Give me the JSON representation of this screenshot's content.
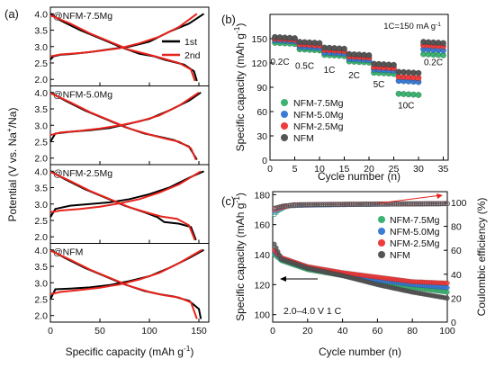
{
  "chart_data": [
    {
      "id": "a",
      "panel_label": "(a)",
      "type": "line",
      "xlabel": "Specific capacity (mAh g",
      "xlabel_sup": "-1",
      "xlabel_end": ")",
      "ylabel": "Potential (V vs. Na",
      "ylabel_sup": "+",
      "ylabel_end": "/Na)",
      "xlim": [
        0,
        160
      ],
      "x_ticks": [
        0,
        50,
        100,
        150
      ],
      "ylim": [
        1.8,
        4.2
      ],
      "y_ticks": [
        2.0,
        2.5,
        3.0,
        3.5,
        4.0
      ],
      "legend": [
        {
          "name": "1st",
          "color": "#000000"
        },
        {
          "name": "2nd",
          "color": "#e8231c"
        }
      ],
      "subplots": [
        {
          "label": "@NFM-7.5Mg",
          "charge": [
            [
              0,
              2.6
            ],
            [
              3,
              2.7
            ],
            [
              10,
              2.75
            ],
            [
              20,
              2.77
            ],
            [
              40,
              2.83
            ],
            [
              60,
              2.92
            ],
            [
              80,
              3.0
            ],
            [
              100,
              3.15
            ],
            [
              120,
              3.45
            ],
            [
              140,
              3.7
            ],
            [
              155,
              4.0
            ]
          ],
          "discharge": [
            [
              0,
              4.0
            ],
            [
              10,
              3.8
            ],
            [
              30,
              3.5
            ],
            [
              50,
              3.25
            ],
            [
              70,
              3.0
            ],
            [
              90,
              2.78
            ],
            [
              105,
              2.7
            ],
            [
              115,
              2.6
            ],
            [
              135,
              2.45
            ],
            [
              145,
              2.25
            ],
            [
              148,
              1.95
            ]
          ],
          "charge2": [
            [
              0,
              2.7
            ],
            [
              10,
              2.76
            ],
            [
              30,
              2.8
            ],
            [
              50,
              2.87
            ],
            [
              70,
              2.95
            ],
            [
              90,
              3.1
            ],
            [
              110,
              3.3
            ],
            [
              130,
              3.6
            ],
            [
              148,
              4.0
            ]
          ],
          "discharge2": [
            [
              0,
              3.95
            ],
            [
              20,
              3.7
            ],
            [
              40,
              3.4
            ],
            [
              60,
              3.15
            ],
            [
              80,
              2.9
            ],
            [
              100,
              2.75
            ],
            [
              112,
              2.65
            ],
            [
              130,
              2.5
            ],
            [
              142,
              2.3
            ],
            [
              146,
              1.95
            ]
          ]
        },
        {
          "label": "@NFM-5.0Mg",
          "charge": [
            [
              0,
              2.5
            ],
            [
              5,
              2.75
            ],
            [
              20,
              2.8
            ],
            [
              40,
              2.85
            ],
            [
              60,
              2.92
            ],
            [
              80,
              3.05
            ],
            [
              100,
              3.2
            ],
            [
              120,
              3.45
            ],
            [
              140,
              3.75
            ],
            [
              152,
              4.0
            ]
          ],
          "discharge": [
            [
              0,
              4.0
            ],
            [
              15,
              3.75
            ],
            [
              35,
              3.45
            ],
            [
              55,
              3.2
            ],
            [
              75,
              2.95
            ],
            [
              95,
              2.75
            ],
            [
              110,
              2.65
            ],
            [
              125,
              2.55
            ],
            [
              140,
              2.35
            ],
            [
              148,
              1.95
            ]
          ],
          "charge2": [
            [
              0,
              2.7
            ],
            [
              10,
              2.78
            ],
            [
              30,
              2.83
            ],
            [
              50,
              2.9
            ],
            [
              70,
              3.0
            ],
            [
              90,
              3.12
            ],
            [
              110,
              3.3
            ],
            [
              130,
              3.6
            ],
            [
              150,
              4.0
            ]
          ],
          "discharge2": [
            [
              0,
              3.98
            ],
            [
              20,
              3.7
            ],
            [
              40,
              3.4
            ],
            [
              60,
              3.15
            ],
            [
              80,
              2.9
            ],
            [
              100,
              2.72
            ],
            [
              115,
              2.6
            ],
            [
              130,
              2.5
            ],
            [
              142,
              2.3
            ],
            [
              147,
              1.95
            ]
          ]
        },
        {
          "label": "@NFM-2.5Mg",
          "charge": [
            [
              0,
              2.6
            ],
            [
              5,
              2.85
            ],
            [
              20,
              2.95
            ],
            [
              40,
              3.0
            ],
            [
              60,
              3.05
            ],
            [
              80,
              3.15
            ],
            [
              100,
              3.3
            ],
            [
              120,
              3.5
            ],
            [
              140,
              3.8
            ],
            [
              155,
              4.0
            ]
          ],
          "discharge": [
            [
              0,
              4.0
            ],
            [
              15,
              3.75
            ],
            [
              35,
              3.45
            ],
            [
              55,
              3.2
            ],
            [
              75,
              2.95
            ],
            [
              95,
              2.75
            ],
            [
              108,
              2.6
            ],
            [
              115,
              2.45
            ],
            [
              130,
              2.4
            ],
            [
              142,
              2.3
            ],
            [
              147,
              1.9
            ]
          ],
          "charge2": [
            [
              0,
              2.75
            ],
            [
              10,
              2.8
            ],
            [
              30,
              2.85
            ],
            [
              50,
              2.92
            ],
            [
              70,
              3.02
            ],
            [
              90,
              3.15
            ],
            [
              110,
              3.35
            ],
            [
              130,
              3.6
            ],
            [
              152,
              4.0
            ]
          ],
          "discharge2": [
            [
              0,
              3.98
            ],
            [
              20,
              3.7
            ],
            [
              40,
              3.4
            ],
            [
              60,
              3.15
            ],
            [
              80,
              2.9
            ],
            [
              100,
              2.72
            ],
            [
              112,
              2.62
            ],
            [
              128,
              2.55
            ],
            [
              140,
              2.35
            ],
            [
              146,
              1.9
            ]
          ]
        },
        {
          "label": "@NFM",
          "charge": [
            [
              0,
              2.5
            ],
            [
              5,
              2.8
            ],
            [
              20,
              2.82
            ],
            [
              40,
              2.86
            ],
            [
              60,
              2.93
            ],
            [
              80,
              3.05
            ],
            [
              100,
              3.2
            ],
            [
              120,
              3.45
            ],
            [
              140,
              3.75
            ],
            [
              155,
              4.0
            ]
          ],
          "discharge": [
            [
              0,
              4.0
            ],
            [
              15,
              3.75
            ],
            [
              35,
              3.45
            ],
            [
              55,
              3.2
            ],
            [
              75,
              2.95
            ],
            [
              95,
              2.75
            ],
            [
              110,
              2.65
            ],
            [
              125,
              2.58
            ],
            [
              140,
              2.45
            ],
            [
              150,
              2.2
            ],
            [
              152,
              1.9
            ]
          ],
          "charge2": [
            [
              0,
              2.65
            ],
            [
              10,
              2.72
            ],
            [
              30,
              2.78
            ],
            [
              50,
              2.85
            ],
            [
              70,
              2.95
            ],
            [
              90,
              3.1
            ],
            [
              110,
              3.3
            ],
            [
              130,
              3.6
            ],
            [
              153,
              4.0
            ]
          ],
          "discharge2": [
            [
              0,
              3.98
            ],
            [
              20,
              3.7
            ],
            [
              40,
              3.4
            ],
            [
              60,
              3.15
            ],
            [
              80,
              2.9
            ],
            [
              100,
              2.72
            ],
            [
              115,
              2.62
            ],
            [
              130,
              2.55
            ],
            [
              142,
              2.4
            ],
            [
              148,
              1.9
            ]
          ]
        }
      ]
    },
    {
      "id": "b",
      "panel_label": "(b)",
      "type": "scatter",
      "xlabel": "Cycle number (n)",
      "ylabel": "Specific capacity (mAh g",
      "ylabel_sup": "-1",
      "ylabel_end": ")",
      "xlim": [
        0,
        36
      ],
      "x_ticks": [
        0,
        5,
        10,
        15,
        20,
        25,
        30,
        35
      ],
      "ylim": [
        0,
        180
      ],
      "y_ticks": [
        0,
        30,
        60,
        90,
        120,
        150
      ],
      "annotation": "1C=150 mA g",
      "annotation_sup": "-1",
      "rate_labels": [
        {
          "text": "0.2C",
          "x": 2,
          "y": 118
        },
        {
          "text": "0.5C",
          "x": 7,
          "y": 113
        },
        {
          "text": "1C",
          "x": 12,
          "y": 108
        },
        {
          "text": "2C",
          "x": 17,
          "y": 101
        },
        {
          "text": "5C",
          "x": 22,
          "y": 90
        },
        {
          "text": "10C",
          "x": 27.5,
          "y": 64
        },
        {
          "text": "0.2C",
          "x": 33,
          "y": 117
        }
      ],
      "segments": [
        {
          "x_start": 1,
          "x_end": 5,
          "values": [
            145,
            148,
            150,
            152
          ]
        },
        {
          "x_start": 6,
          "x_end": 10,
          "values": [
            137,
            140,
            143,
            146
          ]
        },
        {
          "x_start": 11,
          "x_end": 15,
          "values": [
            130,
            133,
            136,
            139
          ]
        },
        {
          "x_start": 16,
          "x_end": 20,
          "values": [
            122,
            125,
            128,
            131
          ]
        },
        {
          "x_start": 21,
          "x_end": 25,
          "values": [
            108,
            112,
            115,
            119
          ]
        },
        {
          "x_start": 26,
          "x_end": 30,
          "values": [
            82,
            98,
            103,
            109
          ]
        },
        {
          "x_start": 31,
          "x_end": 35,
          "values": [
            131,
            137,
            142,
            146
          ]
        }
      ],
      "series": [
        {
          "name": "NFM-7.5Mg",
          "color": "#3cb371"
        },
        {
          "name": "NFM-5.0Mg",
          "color": "#3a7bd5"
        },
        {
          "name": "NFM-2.5Mg",
          "color": "#ee3b3b"
        },
        {
          "name": "NFM",
          "color": "#555555"
        }
      ]
    },
    {
      "id": "c",
      "panel_label": "(c)",
      "type": "scatter",
      "xlabel": "Cycle number (n)",
      "ylabel": "Specific capacity (mAh g",
      "ylabel_sup": "-1",
      "ylabel_end": ")",
      "y2label": "Coulombic efficiency (%)",
      "xlim": [
        0,
        100
      ],
      "x_ticks": [
        0,
        20,
        40,
        60,
        80,
        100
      ],
      "ylim": [
        95,
        182
      ],
      "y_ticks": [
        100,
        120,
        140,
        160,
        180
      ],
      "y2lim": [
        0,
        109
      ],
      "y2_ticks": [
        0,
        20,
        40,
        60,
        80,
        100
      ],
      "annotation": "2.0–4.0 V 1 C",
      "series": [
        {
          "name": "NFM-7.5Mg",
          "color": "#3cb371",
          "capacity": [
            [
              1,
              140
            ],
            [
              5,
              136
            ],
            [
              20,
              130
            ],
            [
              40,
              126
            ],
            [
              60,
              121
            ],
            [
              80,
              118
            ],
            [
              100,
              115
            ]
          ],
          "efficiency": [
            [
              1,
              90
            ],
            [
              3,
              93
            ],
            [
              8,
              97
            ],
            [
              20,
              98
            ],
            [
              50,
              98.5
            ],
            [
              100,
              99
            ]
          ]
        },
        {
          "name": "NFM-5.0Mg",
          "color": "#3a7bd5",
          "capacity": [
            [
              1,
              142
            ],
            [
              5,
              137
            ],
            [
              20,
              131
            ],
            [
              40,
              127
            ],
            [
              60,
              123
            ],
            [
              80,
              120
            ],
            [
              100,
              118
            ]
          ],
          "efficiency": [
            [
              1,
              92
            ],
            [
              4,
              95
            ],
            [
              10,
              97.5
            ],
            [
              30,
              98
            ],
            [
              60,
              98.5
            ],
            [
              100,
              99
            ]
          ]
        },
        {
          "name": "NFM-2.5Mg",
          "color": "#ee3b3b",
          "capacity": [
            [
              1,
              143
            ],
            [
              5,
              138
            ],
            [
              20,
              132
            ],
            [
              40,
              128
            ],
            [
              60,
              125
            ],
            [
              80,
              122
            ],
            [
              100,
              121
            ]
          ],
          "efficiency": [
            [
              1,
              94
            ],
            [
              5,
              96
            ],
            [
              12,
              98
            ],
            [
              40,
              98.5
            ],
            [
              100,
              99
            ]
          ]
        },
        {
          "name": "NFM",
          "color": "#555555",
          "capacity": [
            [
              1,
              147
            ],
            [
              5,
              137
            ],
            [
              20,
              131
            ],
            [
              40,
              126
            ],
            [
              60,
              120
            ],
            [
              80,
              115
            ],
            [
              100,
              111
            ]
          ],
          "efficiency": [
            [
              1,
              95
            ],
            [
              6,
              97
            ],
            [
              15,
              98
            ],
            [
              50,
              98.5
            ],
            [
              100,
              99
            ]
          ]
        }
      ]
    }
  ]
}
